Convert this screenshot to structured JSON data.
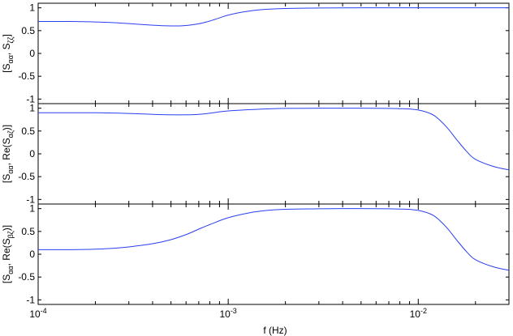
{
  "chart_data": [
    {
      "type": "line",
      "xlabel": "",
      "ylabel": "[S_αα, S_ζζ]",
      "ylabel_main": "[S",
      "ylabel_sub1": "αα",
      "ylabel_mid": ", S",
      "ylabel_sub2": "ζζ",
      "ylabel_end": "]",
      "xscale": "log",
      "xlim": [
        0.0001,
        0.03
      ],
      "ylim": [
        -1.1,
        1.1
      ],
      "yticks": [
        "-1",
        "-0.5",
        "0",
        "0.5",
        "1"
      ],
      "xtick_labels_shown": false,
      "color": "#2a3ff0",
      "series": [
        {
          "x": [
            0.0001,
            0.00015,
            0.0002,
            0.00025,
            0.0003,
            0.00035,
            0.0004,
            0.00045,
            0.0005,
            0.00055,
            0.0006,
            0.0007,
            0.0008,
            0.0009,
            0.001,
            0.0012,
            0.0015,
            0.002,
            0.003,
            0.005,
            0.01,
            0.02,
            0.03
          ],
          "y": [
            0.7,
            0.7,
            0.69,
            0.675,
            0.655,
            0.635,
            0.618,
            0.608,
            0.603,
            0.603,
            0.612,
            0.65,
            0.71,
            0.78,
            0.84,
            0.91,
            0.96,
            0.985,
            0.995,
            1.0,
            1.0,
            1.0,
            1.0
          ]
        }
      ]
    },
    {
      "type": "line",
      "xlabel": "",
      "ylabel": "[S_αα, Re(S_αζ)]",
      "ylabel_main": "[S",
      "ylabel_sub1": "αα",
      "ylabel_mid": ", Re(S",
      "ylabel_sub2": "αζ",
      "ylabel_end": ")]",
      "xscale": "log",
      "xlim": [
        0.0001,
        0.03
      ],
      "ylim": [
        -1.1,
        1.1
      ],
      "yticks": [
        "-1",
        "-0.5",
        "0",
        "0.5",
        "1"
      ],
      "xtick_labels_shown": false,
      "color": "#2a3ff0",
      "series": [
        {
          "x": [
            0.0001,
            0.0002,
            0.0003,
            0.0004,
            0.0005,
            0.0006,
            0.0007,
            0.0008,
            0.001,
            0.0015,
            0.002,
            0.003,
            0.005,
            0.008,
            0.01,
            0.012,
            0.014,
            0.016,
            0.018,
            0.02,
            0.025,
            0.03
          ],
          "y": [
            0.9,
            0.9,
            0.885,
            0.865,
            0.855,
            0.855,
            0.865,
            0.89,
            0.94,
            0.98,
            0.995,
            1.0,
            1.0,
            0.99,
            0.96,
            0.85,
            0.6,
            0.3,
            0.05,
            -0.12,
            -0.28,
            -0.35
          ]
        }
      ]
    },
    {
      "type": "line",
      "xlabel": "f (Hz)",
      "ylabel": "[S_αα, Re(S_βζ)]",
      "ylabel_main": "[S",
      "ylabel_sub1": "αα",
      "ylabel_mid": ", Re(S",
      "ylabel_sub2": "βζ",
      "ylabel_end": ")]",
      "xscale": "log",
      "xlim": [
        0.0001,
        0.03
      ],
      "ylim": [
        -1.1,
        1.1
      ],
      "yticks": [
        "-1",
        "-0.5",
        "0",
        "0.5",
        "1"
      ],
      "xtick_labels_shown": true,
      "xticks": [
        {
          "value": 0.0001,
          "base": "10",
          "exp": "-4"
        },
        {
          "value": 0.001,
          "base": "10",
          "exp": "-3"
        },
        {
          "value": 0.01,
          "base": "10",
          "exp": "-2"
        }
      ],
      "color": "#2a3ff0",
      "series": [
        {
          "x": [
            0.0001,
            0.00015,
            0.0002,
            0.00025,
            0.0003,
            0.0004,
            0.0005,
            0.0006,
            0.0007,
            0.0008,
            0.001,
            0.0013,
            0.0016,
            0.002,
            0.003,
            0.005,
            0.008,
            0.01,
            0.012,
            0.014,
            0.016,
            0.018,
            0.02,
            0.025,
            0.03
          ],
          "y": [
            0.1,
            0.1,
            0.11,
            0.13,
            0.16,
            0.23,
            0.32,
            0.43,
            0.55,
            0.65,
            0.8,
            0.91,
            0.96,
            0.985,
            0.995,
            1.0,
            0.99,
            0.96,
            0.85,
            0.6,
            0.3,
            0.05,
            -0.12,
            -0.28,
            -0.35
          ]
        }
      ]
    }
  ]
}
